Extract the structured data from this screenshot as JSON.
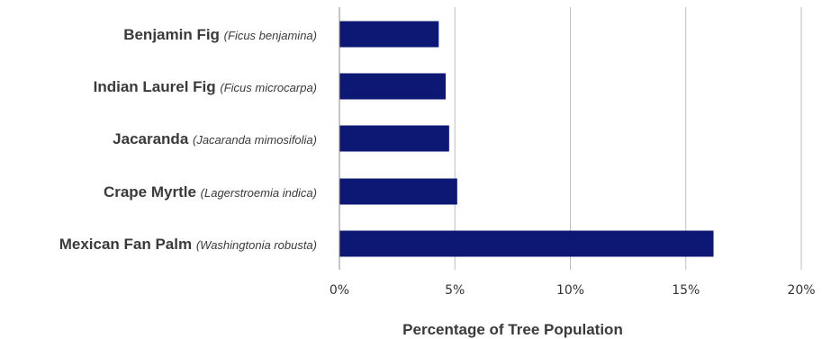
{
  "chart_data": {
    "type": "bar",
    "orientation": "horizontal",
    "categories": [
      {
        "name": "Benjamin Fig",
        "scientific": "(Ficus benjamina)"
      },
      {
        "name": "Indian Laurel Fig",
        "scientific": "(Ficus microcarpa)"
      },
      {
        "name": "Jacaranda",
        "scientific": "(Jacaranda mimosifolia)"
      },
      {
        "name": "Crape Myrtle",
        "scientific": "(Lagerstroemia indica)"
      },
      {
        "name": "Mexican Fan Palm",
        "scientific": "(Washingtonia robusta)"
      }
    ],
    "values": [
      4.3,
      4.6,
      4.75,
      5.1,
      16.2
    ],
    "xlim": [
      0,
      20
    ],
    "xticks": [
      "0%",
      "5%",
      "10%",
      "15%",
      "20%"
    ],
    "xlabel": "Percentage of Tree Population",
    "ylabel": "",
    "title": "",
    "grid": "vertical",
    "legend": "none",
    "colors": {
      "bar": "#0c1873",
      "grid": "#bdbdbd",
      "axis": "#8c8c8c"
    }
  }
}
